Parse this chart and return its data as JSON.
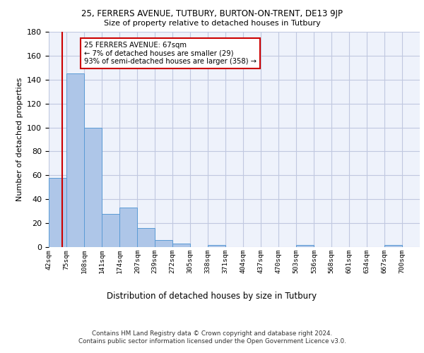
{
  "title1": "25, FERRERS AVENUE, TUTBURY, BURTON-ON-TRENT, DE13 9JP",
  "title2": "Size of property relative to detached houses in Tutbury",
  "xlabel": "Distribution of detached houses by size in Tutbury",
  "ylabel": "Number of detached properties",
  "footer": "Contains HM Land Registry data © Crown copyright and database right 2024.\nContains public sector information licensed under the Open Government Licence v3.0.",
  "bin_labels": [
    "42sqm",
    "75sqm",
    "108sqm",
    "141sqm",
    "174sqm",
    "207sqm",
    "239sqm",
    "272sqm",
    "305sqm",
    "338sqm",
    "371sqm",
    "404sqm",
    "437sqm",
    "470sqm",
    "503sqm",
    "536sqm",
    "568sqm",
    "601sqm",
    "634sqm",
    "667sqm",
    "700sqm"
  ],
  "bin_edges": [
    42,
    75,
    108,
    141,
    174,
    207,
    239,
    272,
    305,
    338,
    371,
    404,
    437,
    470,
    503,
    536,
    568,
    601,
    634,
    667,
    700
  ],
  "bar_values": [
    58,
    145,
    100,
    28,
    33,
    16,
    6,
    3,
    0,
    2,
    0,
    0,
    0,
    0,
    2,
    0,
    0,
    0,
    0,
    2,
    0
  ],
  "bar_color": "#aec6e8",
  "bar_edge_color": "#5b9bd5",
  "grid_color": "#c0c8e0",
  "bg_color": "#eef2fb",
  "property_size": 67,
  "red_line_color": "#cc0000",
  "annotation_text": "25 FERRERS AVENUE: 67sqm\n← 7% of detached houses are smaller (29)\n93% of semi-detached houses are larger (358) →",
  "annotation_box_color": "#ffffff",
  "annotation_box_edge": "#cc0000",
  "ylim": [
    0,
    180
  ],
  "yticks": [
    0,
    20,
    40,
    60,
    80,
    100,
    120,
    140,
    160,
    180
  ]
}
